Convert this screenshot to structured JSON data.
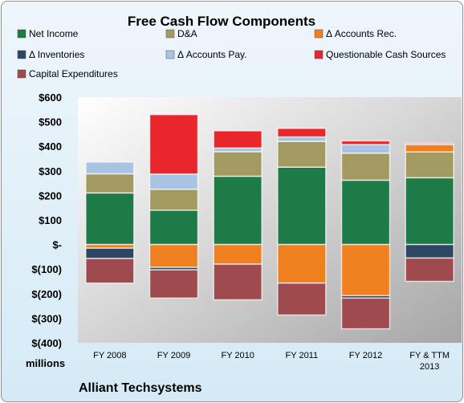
{
  "chart_data": {
    "type": "bar",
    "stacked": true,
    "title": "Free Cash Flow Components",
    "ylabel_unit": "millions",
    "footer": "Alliant Techsystems",
    "ylim": [
      -400,
      600
    ],
    "yticks": [
      600,
      500,
      400,
      300,
      200,
      100,
      0,
      -100,
      -200,
      -300,
      -400
    ],
    "ytick_labels": [
      "$600",
      "$500",
      "$400",
      "$300",
      "$200",
      "$100",
      "$-",
      "$(100)",
      "$(200)",
      "$(300)",
      "$(400)"
    ],
    "categories": [
      "FY 2008",
      "FY 2009",
      "FY 2010",
      "FY 2011",
      "FY 2012",
      "FY & TTM 2013"
    ],
    "series": [
      {
        "name": "Net Income",
        "color": "#1e7b48",
        "values": [
          210,
          140,
          278,
          315,
          262,
          272
        ]
      },
      {
        "name": "D&A",
        "color": "#a39a62",
        "values": [
          78,
          85,
          100,
          105,
          110,
          105
        ]
      },
      {
        "name": "Δ Accounts Rec.",
        "color": "#ef7f1f",
        "values": [
          -15,
          -93,
          -80,
          -157,
          -208,
          30
        ]
      },
      {
        "name": "Δ Inventories",
        "color": "#2c4664",
        "values": [
          -42,
          -10,
          0,
          0,
          -10,
          -55
        ]
      },
      {
        "name": "Δ Accounts Pay.",
        "color": "#a9c3e3",
        "values": [
          48,
          62,
          15,
          18,
          35,
          0
        ]
      },
      {
        "name": "Questionable Cash Sources",
        "color": "#e8262b",
        "values": [
          0,
          242,
          70,
          35,
          15,
          5
        ]
      },
      {
        "name": "Capital Expenditures",
        "color": "#9e4a4f",
        "values": [
          -100,
          -115,
          -145,
          -130,
          -125,
          -95
        ]
      }
    ],
    "legend_position": "top",
    "grid": false
  }
}
